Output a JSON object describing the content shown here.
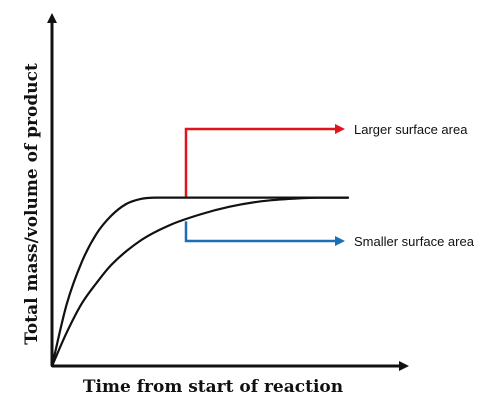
{
  "chart_data": {
    "type": "line",
    "xlabel": "Time from start of reaction",
    "ylabel": "Total mass/volume of product",
    "grid": false,
    "xlim": [
      0,
      10
    ],
    "ylim": [
      0,
      10
    ],
    "series": [
      {
        "name": "Larger surface area",
        "color": "#111111",
        "x": [
          0,
          0.5,
          1,
          1.5,
          2,
          2.5,
          3,
          3.5,
          4,
          5,
          6,
          7,
          8,
          9,
          10
        ],
        "y": [
          0,
          2.4,
          4.0,
          5.1,
          5.8,
          6.25,
          6.45,
          6.5,
          6.5,
          6.5,
          6.5,
          6.5,
          6.5,
          6.5,
          6.5
        ]
      },
      {
        "name": "Smaller surface area",
        "color": "#111111",
        "x": [
          0,
          0.5,
          1,
          1.5,
          2,
          3,
          4,
          5,
          6,
          7,
          8,
          9,
          10
        ],
        "y": [
          0,
          1.3,
          2.4,
          3.2,
          3.9,
          4.85,
          5.45,
          5.85,
          6.15,
          6.35,
          6.45,
          6.5,
          6.5
        ]
      }
    ],
    "annotations": [
      {
        "text": "Larger surface area",
        "color": "#e0141e",
        "series": "Larger surface area"
      },
      {
        "text": "Smaller surface area",
        "color": "#1a6fb5",
        "series": "Smaller surface area"
      }
    ]
  }
}
